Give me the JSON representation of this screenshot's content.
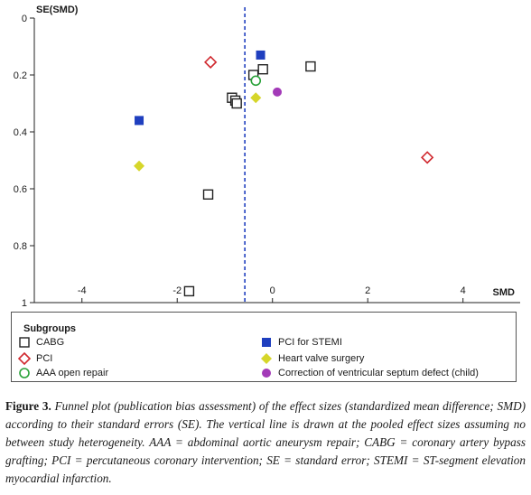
{
  "chart_data": {
    "type": "scatter",
    "title": "",
    "xlabel": "SMD",
    "ylabel": "SE(SMD)",
    "xlim": [
      -5,
      5.2
    ],
    "ylim": [
      0,
      1
    ],
    "y_inverted": true,
    "x_ticks": [
      -4,
      -2,
      0,
      2,
      4
    ],
    "y_ticks": [
      0,
      0.2,
      0.4,
      0.6,
      0.8,
      1
    ],
    "x_tick_labels": [
      "-4",
      "-2",
      "0",
      "2",
      "4"
    ],
    "y_tick_labels": [
      "0",
      "0.2",
      "0.4",
      "0.6",
      "0.8",
      "1"
    ],
    "pooled_line_x": -0.58,
    "pooled_line_color": "#1f3fbf",
    "grid": false,
    "legend_position": "bottom",
    "legend_title": "Subgroups",
    "series": [
      {
        "name": "CABG",
        "marker": "square-open",
        "color": "#222222",
        "points": [
          [
            -1.75,
            0.96
          ],
          [
            -1.35,
            0.62
          ],
          [
            -0.85,
            0.28
          ],
          [
            -0.78,
            0.29
          ],
          [
            -0.75,
            0.3
          ],
          [
            -0.4,
            0.2
          ],
          [
            -0.2,
            0.18
          ],
          [
            0.8,
            0.17
          ]
        ]
      },
      {
        "name": "PCI",
        "marker": "diamond-open",
        "color": "#d0282e",
        "points": [
          [
            -1.3,
            0.155
          ],
          [
            3.25,
            0.49
          ]
        ]
      },
      {
        "name": "AAA open repair",
        "marker": "circle-open",
        "color": "#2aa23a",
        "points": [
          [
            -0.35,
            0.22
          ]
        ]
      },
      {
        "name": "PCI for STEMI",
        "marker": "square-filled",
        "color": "#1f3fbf",
        "points": [
          [
            -0.25,
            0.13
          ],
          [
            -2.8,
            0.36
          ]
        ]
      },
      {
        "name": "Heart valve surgery",
        "marker": "diamond-filled",
        "color": "#d6d62a",
        "points": [
          [
            -2.8,
            0.52
          ],
          [
            -0.35,
            0.28
          ]
        ]
      },
      {
        "name": "Correction of ventricular septum defect (child)",
        "marker": "circle-filled",
        "color": "#a33ab8",
        "points": [
          [
            0.1,
            0.26
          ]
        ]
      }
    ]
  },
  "caption": {
    "lead": "Figure 3.",
    "body": "Funnel plot (publication bias assessment) of the effect sizes (standardized mean difference; SMD) according to their standard errors (SE). The vertical line is drawn at the pooled effect sizes assuming no between study heterogeneity. AAA = abdominal aortic aneurysm repair; CABG = coronary artery bypass grafting; PCI = percutaneous coronary intervention; SE = standard error; STEMI = ST-segment elevation myocardial infarction."
  }
}
